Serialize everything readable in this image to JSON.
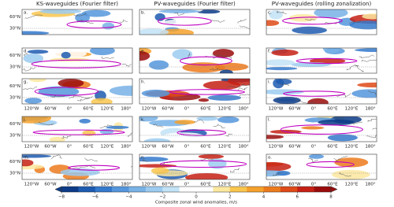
{
  "columns": [
    "KS-waveguides (Fourier filter)",
    "PV-waveguides (Fourier filter)",
    "PV-waveguides (rolling zonalization)"
  ],
  "panels": [
    "a.",
    "b.",
    "c.",
    "d.",
    "e.",
    "f.",
    "g.",
    "h.",
    "i.",
    "j.",
    "k.",
    "l.",
    "m.",
    "n.",
    "o."
  ],
  "lat_labels": [
    "60°N",
    "30°N"
  ],
  "lon_labels": [
    "120°W",
    "60°W",
    "0°",
    "60°E",
    "120°E",
    "180°"
  ],
  "colorbar": {
    "label": "Composite zonal wind anomalies, m/s",
    "lim": [
      -8,
      8
    ],
    "ticks": [
      {
        "value": -8,
        "label": "−8"
      },
      {
        "value": -6,
        "label": "−6"
      },
      {
        "value": -4,
        "label": "−4"
      },
      {
        "value": -2,
        "label": "−2"
      },
      0,
      2,
      4,
      6,
      8
    ],
    "colors": [
      "#0c3b87",
      "#1d5bb0",
      "#3479cc",
      "#5596dc",
      "#78b2e6",
      "#9ccbf0",
      "#c2e2f6",
      "#ffffff",
      "#ffffff",
      "#fde8a0",
      "#f9c54e",
      "#f4a12c",
      "#ec7a1c",
      "#de4a18",
      "#c52014",
      "#9a0c0c"
    ]
  }
}
